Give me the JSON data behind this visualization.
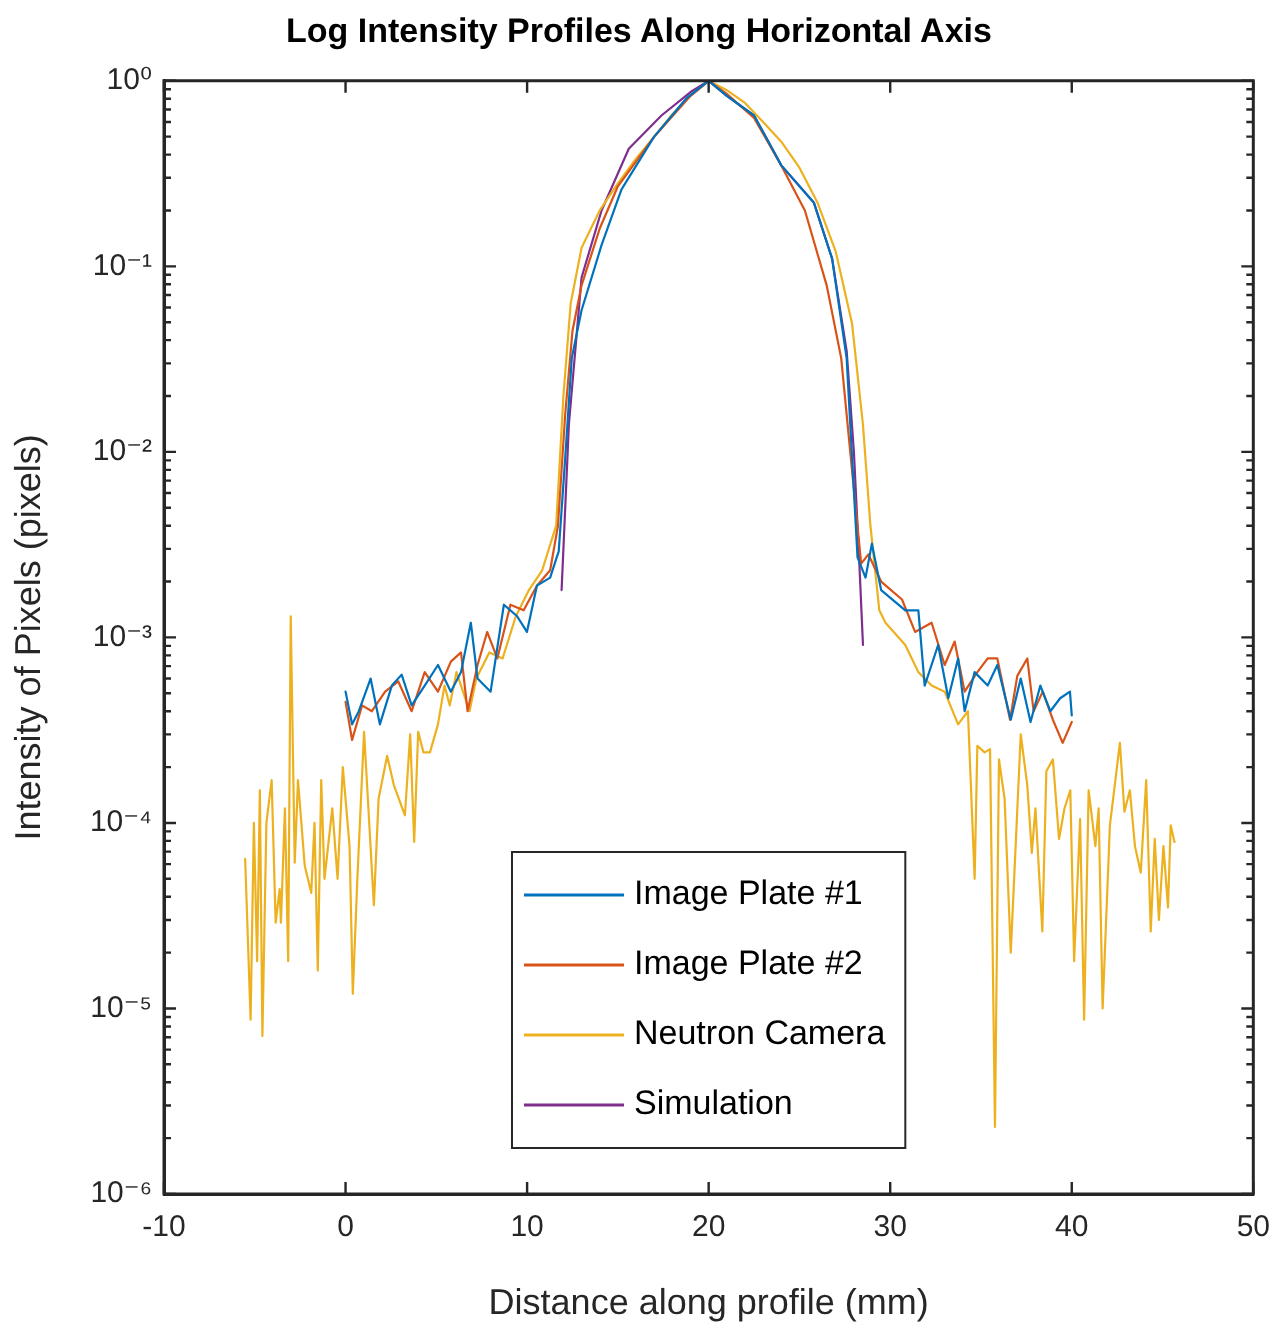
{
  "chart_data": {
    "type": "line",
    "title": "Log Intensity Profiles Along Horizontal Axis",
    "xlabel": "Distance along profile (mm)",
    "ylabel": "Intensity of Pixels (pixels)",
    "xlim": [
      -10,
      50
    ],
    "xticks": [
      -10,
      0,
      10,
      20,
      30,
      40,
      50
    ],
    "ylim": [
      1e-06,
      1
    ],
    "yticks": [
      {
        "value": 1e-06,
        "label": "10⁻⁶"
      },
      {
        "value": 1e-05,
        "label": "10⁻⁵"
      },
      {
        "value": 0.0001,
        "label": "10⁻⁴"
      },
      {
        "value": 0.001,
        "label": "10⁻³"
      },
      {
        "value": 0.01,
        "label": "10⁻²"
      },
      {
        "value": 0.1,
        "label": "10⁻¹"
      },
      {
        "value": 1,
        "label": "10⁰"
      }
    ],
    "log": "y",
    "legend": "bottom",
    "marker": "none",
    "line_style": "solid",
    "series": [
      {
        "name": "Image Plate #1",
        "color": "#0072bd",
        "x": [
          0,
          0.36,
          0.73,
          1.38,
          1.89,
          2.55,
          3.09,
          3.64,
          4.36,
          5.09,
          5.8,
          6.36,
          6.9,
          7.27,
          7.99,
          8.72,
          9.45,
          9.99,
          10.54,
          11.27,
          11.63,
          11.74,
          12.1,
          12.46,
          13.0,
          14.1,
          15.2,
          17.0,
          18.8,
          20,
          21,
          22.5,
          24.0,
          25.8,
          26.8,
          27.6,
          27.9,
          28.2,
          28.64,
          28.99,
          29.5,
          30.83,
          31.55,
          31.9,
          32.64,
          33.2,
          33.74,
          34.1,
          34.65,
          35.37,
          35.9,
          36.64,
          37.19,
          37.73,
          38.27,
          38.82,
          39.36,
          39.9,
          40
        ],
        "values": [
          0.00051,
          0.00034,
          0.0004,
          0.0006,
          0.00034,
          0.00055,
          0.00063,
          0.00043,
          0.00055,
          0.00071,
          0.00051,
          0.00065,
          0.0012,
          0.0006,
          0.00051,
          0.0015,
          0.0013,
          0.00107,
          0.0019,
          0.0021,
          0.0027,
          0.0029,
          0.0093,
          0.032,
          0.058,
          0.13,
          0.26,
          0.5,
          0.81,
          1,
          0.83,
          0.65,
          0.35,
          0.22,
          0.11,
          0.032,
          0.0093,
          0.0027,
          0.0021,
          0.0032,
          0.0018,
          0.0014,
          0.0014,
          0.00055,
          0.00091,
          0.00047,
          0.00077,
          0.0004,
          0.00065,
          0.00055,
          0.00071,
          0.00036,
          0.0006,
          0.00035,
          0.00055,
          0.0004,
          0.00047,
          0.00051,
          0.00038
        ]
      },
      {
        "name": "Image Plate #2",
        "color": "#d95319",
        "x": [
          0,
          0.36,
          0.91,
          1.45,
          2.18,
          2.9,
          3.64,
          4.36,
          5.09,
          5.8,
          6.36,
          6.72,
          7.27,
          7.8,
          8.36,
          9.08,
          9.81,
          10.54,
          11.27,
          11.7,
          12.1,
          12.5,
          13,
          14,
          15,
          17,
          19,
          20,
          21,
          22.5,
          24,
          25.3,
          26.5,
          27.3,
          27.9,
          28.4,
          28.8,
          29.5,
          30.65,
          31.37,
          32.28,
          33.0,
          33.55,
          34.1,
          34.8,
          35.37,
          35.9,
          36.6,
          37.0,
          37.55,
          37.9,
          38.4,
          38.96,
          39.5,
          40
        ],
        "values": [
          0.00045,
          0.00028,
          0.00043,
          0.0004,
          0.00051,
          0.00058,
          0.0004,
          0.00065,
          0.00051,
          0.00074,
          0.00083,
          0.0004,
          0.00071,
          0.00107,
          0.00077,
          0.0015,
          0.0014,
          0.0019,
          0.0023,
          0.004,
          0.016,
          0.045,
          0.079,
          0.16,
          0.27,
          0.5,
          0.83,
          1,
          0.85,
          0.63,
          0.35,
          0.2,
          0.079,
          0.032,
          0.0079,
          0.0025,
          0.0028,
          0.002,
          0.0016,
          0.00107,
          0.0012,
          0.00071,
          0.00095,
          0.00051,
          0.00065,
          0.00077,
          0.00077,
          0.00036,
          0.00062,
          0.00077,
          0.0004,
          0.00051,
          0.00036,
          0.00027,
          0.00035
        ]
      },
      {
        "name": "Neutron Camera",
        "color": "#edb120",
        "x": [
          -5.53,
          -5.23,
          -5.05,
          -4.87,
          -4.72,
          -4.58,
          -4.36,
          -4.07,
          -3.85,
          -3.63,
          -3.56,
          -3.34,
          -3.16,
          -3.02,
          -2.8,
          -2.62,
          -2.25,
          -1.89,
          -1.71,
          -1.53,
          -1.34,
          -1.16,
          -0.73,
          -0.44,
          -0.15,
          0.22,
          0.4,
          0.65,
          1.02,
          1.56,
          1.82,
          2.29,
          2.66,
          3.27,
          3.56,
          3.78,
          4.0,
          4.29,
          4.65,
          5.09,
          5.45,
          5.74,
          6.11,
          6.83,
          7.2,
          7.92,
          8.65,
          9.38,
          10.1,
          10.83,
          11.6,
          12.0,
          12.4,
          13,
          14,
          15,
          16,
          17,
          18,
          19,
          20,
          21,
          22,
          23,
          24,
          25,
          26,
          27,
          27.9,
          28.5,
          28.9,
          29.4,
          29.74,
          30.83,
          31.55,
          32.28,
          33.0,
          33.74,
          34.28,
          34.65,
          34.8,
          35.2,
          35.5,
          35.77,
          35.99,
          36.3,
          36.64,
          37.19,
          37.55,
          37.8,
          38.0,
          38.38,
          38.6,
          38.96,
          39.3,
          39.6,
          39.92,
          40.13,
          40.46,
          40.68,
          40.93,
          41.3,
          41.48,
          41.7,
          42.1,
          42.65,
          42.9,
          43.2,
          43.48,
          43.8,
          44.1,
          44.35,
          44.57,
          44.8,
          45.05,
          45.3,
          45.45,
          45.66
        ],
        "values": [
          6.4e-05,
          8.7e-06,
          0.0001,
          1.8e-05,
          0.00015,
          7.1e-06,
          0.0001,
          0.00017,
          2.9e-05,
          4.4e-05,
          2.9e-05,
          0.00012,
          1.8e-05,
          0.0013,
          6.1e-05,
          0.00017,
          5.9e-05,
          4.2e-05,
          0.0001,
          1.6e-05,
          0.00017,
          5e-05,
          0.00012,
          5e-05,
          0.0002,
          7.5e-05,
          1.2e-05,
          5e-05,
          0.00031,
          3.6e-05,
          0.000135,
          0.00023,
          0.00016,
          0.00011,
          0.0003,
          7.9e-05,
          0.00031,
          0.00024,
          0.00024,
          0.00034,
          0.00055,
          0.00043,
          0.00065,
          0.0004,
          0.0006,
          0.00083,
          0.00077,
          0.0013,
          0.0018,
          0.0023,
          0.004,
          0.02,
          0.063,
          0.126,
          0.2,
          0.28,
          0.38,
          0.5,
          0.66,
          0.83,
          1,
          0.89,
          0.76,
          0.6,
          0.47,
          0.34,
          0.22,
          0.12,
          0.049,
          0.014,
          0.0041,
          0.0014,
          0.0012,
          0.00091,
          0.00065,
          0.00055,
          0.00051,
          0.00034,
          0.0004,
          5e-05,
          0.00026,
          0.00024,
          0.00025,
          2.3e-06,
          0.00022,
          0.000135,
          2e-05,
          0.0003,
          0.00016,
          6.9e-05,
          0.00012,
          2.6e-05,
          0.00019,
          0.00022,
          8.2e-05,
          0.00012,
          0.00015,
          1.8e-05,
          0.000105,
          8.7e-06,
          0.00015,
          7.5e-05,
          0.00012,
          1e-05,
          9.7e-05,
          0.00027,
          0.000115,
          0.00015,
          7.5e-05,
          5.4e-05,
          0.00017,
          2.6e-05,
          8.2e-05,
          3e-05,
          7.5e-05,
          3.5e-05,
          9.7e-05,
          7.9e-05
        ]
      },
      {
        "name": "Simulation",
        "color": "#7e2f8e",
        "x": [
          11.9,
          12.3,
          13.0,
          14.1,
          15.6,
          17.4,
          19,
          20,
          21,
          22.5,
          24,
          25.8,
          26.8,
          27.6,
          28.0,
          28.3,
          28.5
        ],
        "values": [
          0.0018,
          0.014,
          0.087,
          0.2,
          0.43,
          0.65,
          0.87,
          1,
          0.83,
          0.65,
          0.35,
          0.22,
          0.11,
          0.035,
          0.01,
          0.0025,
          0.00091
        ]
      }
    ]
  }
}
